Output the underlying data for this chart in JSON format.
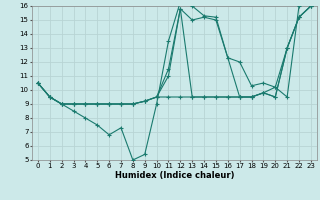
{
  "xlabel": "Humidex (Indice chaleur)",
  "xlim": [
    -0.5,
    23.5
  ],
  "ylim": [
    5,
    16
  ],
  "xticks": [
    0,
    1,
    2,
    3,
    4,
    5,
    6,
    7,
    8,
    9,
    10,
    11,
    12,
    13,
    14,
    15,
    16,
    17,
    18,
    19,
    20,
    21,
    22,
    23
  ],
  "yticks": [
    5,
    6,
    7,
    8,
    9,
    10,
    11,
    12,
    13,
    14,
    15,
    16
  ],
  "bg_color": "#cce9e9",
  "line_color": "#1a7a6e",
  "grid_color": "#b8d4d4",
  "lines": [
    [
      [
        0,
        10.5
      ],
      [
        1,
        9.5
      ],
      [
        2,
        9.0
      ],
      [
        3,
        8.5
      ],
      [
        4,
        8.0
      ],
      [
        5,
        7.5
      ],
      [
        6,
        6.8
      ],
      [
        7,
        7.3
      ],
      [
        8,
        5.0
      ],
      [
        9,
        5.4
      ],
      [
        10,
        9.0
      ],
      [
        11,
        13.5
      ],
      [
        12,
        16.3
      ],
      [
        13,
        16.0
      ],
      [
        14,
        15.3
      ],
      [
        15,
        15.2
      ],
      [
        16,
        12.3
      ],
      [
        17,
        12.0
      ],
      [
        18,
        10.3
      ],
      [
        19,
        10.5
      ],
      [
        20,
        10.2
      ],
      [
        21,
        9.5
      ],
      [
        22,
        16.0
      ]
    ],
    [
      [
        0,
        10.5
      ],
      [
        1,
        9.5
      ],
      [
        2,
        9.0
      ],
      [
        3,
        9.0
      ],
      [
        4,
        9.0
      ],
      [
        5,
        9.0
      ],
      [
        6,
        9.0
      ],
      [
        7,
        9.0
      ],
      [
        8,
        9.0
      ],
      [
        9,
        9.2
      ],
      [
        10,
        9.5
      ],
      [
        11,
        11.0
      ],
      [
        12,
        15.8
      ],
      [
        13,
        15.0
      ],
      [
        14,
        15.2
      ],
      [
        15,
        15.0
      ],
      [
        16,
        12.3
      ],
      [
        17,
        9.5
      ],
      [
        18,
        9.5
      ],
      [
        19,
        9.8
      ],
      [
        20,
        9.5
      ],
      [
        21,
        13.0
      ],
      [
        22,
        15.2
      ],
      [
        23,
        16.0
      ]
    ],
    [
      [
        0,
        10.5
      ],
      [
        1,
        9.5
      ],
      [
        2,
        9.0
      ],
      [
        3,
        9.0
      ],
      [
        4,
        9.0
      ],
      [
        5,
        9.0
      ],
      [
        6,
        9.0
      ],
      [
        7,
        9.0
      ],
      [
        8,
        9.0
      ],
      [
        9,
        9.2
      ],
      [
        10,
        9.5
      ],
      [
        11,
        11.5
      ],
      [
        12,
        15.8
      ],
      [
        13,
        9.5
      ],
      [
        14,
        9.5
      ],
      [
        15,
        9.5
      ],
      [
        16,
        9.5
      ],
      [
        17,
        9.5
      ],
      [
        18,
        9.5
      ],
      [
        19,
        9.8
      ],
      [
        20,
        9.5
      ],
      [
        21,
        13.0
      ],
      [
        22,
        15.2
      ],
      [
        23,
        16.0
      ]
    ],
    [
      [
        0,
        10.5
      ],
      [
        1,
        9.5
      ],
      [
        2,
        9.0
      ],
      [
        3,
        9.0
      ],
      [
        4,
        9.0
      ],
      [
        5,
        9.0
      ],
      [
        6,
        9.0
      ],
      [
        7,
        9.0
      ],
      [
        8,
        9.0
      ],
      [
        9,
        9.2
      ],
      [
        10,
        9.5
      ],
      [
        11,
        9.5
      ],
      [
        12,
        9.5
      ],
      [
        13,
        9.5
      ],
      [
        14,
        9.5
      ],
      [
        15,
        9.5
      ],
      [
        16,
        9.5
      ],
      [
        17,
        9.5
      ],
      [
        18,
        9.5
      ],
      [
        19,
        9.8
      ],
      [
        20,
        10.2
      ],
      [
        21,
        13.0
      ],
      [
        22,
        15.2
      ],
      [
        23,
        16.0
      ]
    ]
  ]
}
